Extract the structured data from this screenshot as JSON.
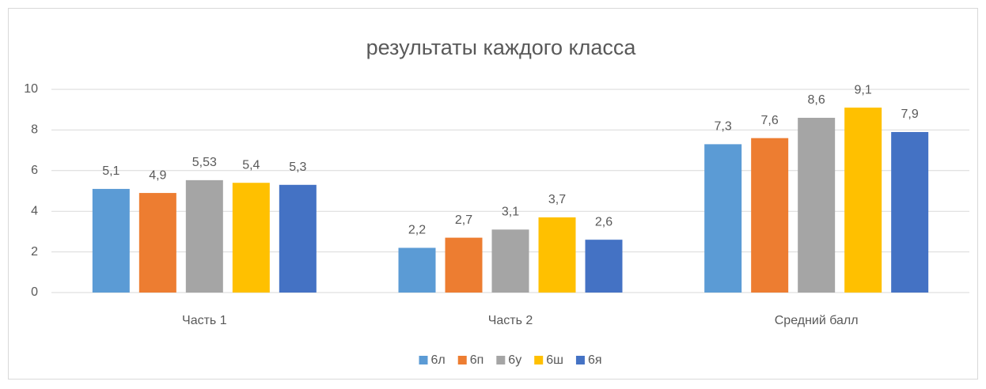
{
  "chart_data": {
    "type": "bar",
    "title": "результаты каждого класса",
    "categories": [
      "Часть 1",
      "Часть 2",
      "Средний балл"
    ],
    "series": [
      {
        "name": "6л",
        "color": "#5b9bd5",
        "values": [
          5.1,
          2.2,
          7.3
        ],
        "value_labels": [
          "5,1",
          "2,2",
          "7,3"
        ]
      },
      {
        "name": "6п",
        "color": "#ed7d31",
        "values": [
          4.9,
          2.7,
          7.6
        ],
        "value_labels": [
          "4,9",
          "2,7",
          "7,6"
        ]
      },
      {
        "name": "6у",
        "color": "#a5a5a5",
        "values": [
          5.53,
          3.1,
          8.6
        ],
        "value_labels": [
          "5,53",
          "3,1",
          "8,6"
        ]
      },
      {
        "name": "6ш",
        "color": "#ffc000",
        "values": [
          5.4,
          3.7,
          9.1
        ],
        "value_labels": [
          "5,4",
          "3,7",
          "9,1"
        ]
      },
      {
        "name": "6я",
        "color": "#4472c4",
        "values": [
          5.3,
          2.6,
          7.9
        ],
        "value_labels": [
          "5,3",
          "2,6",
          "7,9"
        ]
      }
    ],
    "ylim": [
      0,
      10
    ],
    "yticks": [
      0,
      2,
      4,
      6,
      8,
      10
    ],
    "grid": true,
    "legend": "bottom"
  }
}
